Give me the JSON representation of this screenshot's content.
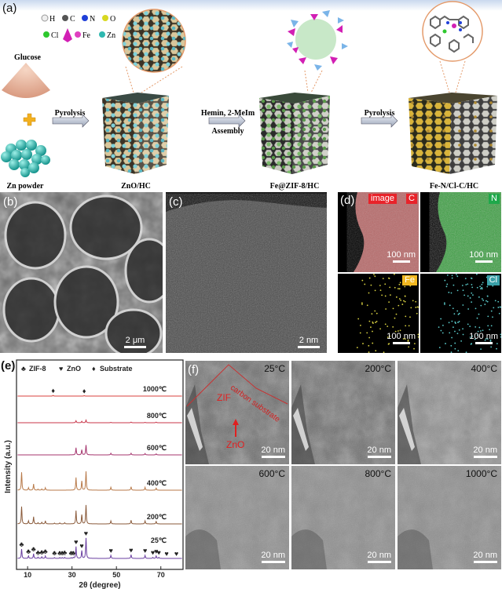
{
  "panel_a": {
    "label": "(a)",
    "legend": [
      {
        "symbol": "H",
        "color": "#eeeeee"
      },
      {
        "symbol": "C",
        "color": "#555555"
      },
      {
        "symbol": "N",
        "color": "#1f3fd8"
      },
      {
        "symbol": "O",
        "color": "#d8d820"
      },
      {
        "symbol": "Cl",
        "color": "#2ec82e"
      },
      {
        "symbol": "Fe",
        "color": "#d21fb4"
      },
      {
        "symbol": "Zn",
        "color": "#2fb8b0"
      }
    ],
    "glucose_label": "Glucose",
    "zn_powder_label": "Zn powder",
    "step1_label": "Pyrolysis",
    "step2_label_top": "Hemin, 2-MeIm",
    "step2_label_bottom": "Assembly",
    "step3_label": "Pyrolysis",
    "product1": "ZnO/HC",
    "product2": "Fe@ZIF-8/HC",
    "product3": "Fe-N/Cl-C/HC"
  },
  "panel_b": {
    "label": "(b)",
    "scale_bar": "2 μm"
  },
  "panel_c": {
    "label": "(c)",
    "scale_bar": "2 nm"
  },
  "panel_d": {
    "label": "(d)",
    "tiles": [
      {
        "tags": [
          "image",
          "C"
        ],
        "color": "#e8232a",
        "scale_bar": "100 nm"
      },
      {
        "tags": [
          "N"
        ],
        "color": "#1fa84a",
        "scale_bar": "100 nm"
      },
      {
        "tags": [
          "Fe"
        ],
        "color": "#f2b820",
        "scale_bar": "100 nm"
      },
      {
        "tags": [
          "Cl"
        ],
        "color": "#3aa0a8",
        "scale_bar": "100 nm"
      }
    ]
  },
  "panel_f": {
    "label": "(f)",
    "annotations": {
      "substrate": "carbon substrate",
      "zif": "ZIF",
      "zno": "ZnO"
    },
    "tiles": [
      {
        "temp": "25°C",
        "scale_bar": "20 nm"
      },
      {
        "temp": "200°C",
        "scale_bar": "20 nm"
      },
      {
        "temp": "400°C",
        "scale_bar": "20 nm"
      },
      {
        "temp": "600°C",
        "scale_bar": "20 nm"
      },
      {
        "temp": "800°C",
        "scale_bar": "20 nm"
      },
      {
        "temp": "1000°C",
        "scale_bar": "20 nm"
      }
    ]
  },
  "chart_data": {
    "panel_label": "(e)",
    "type": "line",
    "xlabel": "2θ (degree)",
    "ylabel": "Intensity (a.u.)",
    "xlim": [
      5,
      80
    ],
    "xticks": [
      10,
      30,
      50,
      70
    ],
    "legend": [
      {
        "symbol": "♣",
        "name": "ZIF-8"
      },
      {
        "symbol": "♥",
        "name": "ZnO"
      },
      {
        "symbol": "♦",
        "name": "Substrate"
      }
    ],
    "legend_placement": "top",
    "series": [
      {
        "name": "1000℃",
        "color": "#d9423c",
        "peaks": [
          [
            21.5,
            3
          ],
          [
            35.5,
            2
          ]
        ],
        "markers": [
          {
            "symbol": "♦",
            "x": [
              21.5,
              35.5
            ]
          }
        ]
      },
      {
        "name": "800℃",
        "color": "#c8364a",
        "peaks": [
          [
            31.8,
            10
          ],
          [
            34.4,
            7
          ],
          [
            36.3,
            13
          ],
          [
            47.5,
            2
          ],
          [
            56.6,
            3
          ],
          [
            62.9,
            2
          ],
          [
            67.9,
            3
          ]
        ]
      },
      {
        "name": "600℃",
        "color": "#a5356e",
        "peaks": [
          [
            31.8,
            35
          ],
          [
            34.4,
            25
          ],
          [
            36.3,
            48
          ],
          [
            47.5,
            8
          ],
          [
            56.6,
            8
          ],
          [
            62.9,
            7
          ],
          [
            67.9,
            5
          ]
        ]
      },
      {
        "name": "400℃",
        "color": "#b87a4a",
        "peaks": [
          [
            7.3,
            88
          ],
          [
            10.4,
            12
          ],
          [
            12.7,
            30
          ],
          [
            14.7,
            5
          ],
          [
            16.4,
            6
          ],
          [
            18.0,
            12
          ],
          [
            31.8,
            62
          ],
          [
            34.4,
            45
          ],
          [
            36.3,
            92
          ],
          [
            47.5,
            14
          ],
          [
            56.6,
            17
          ],
          [
            62.9,
            14
          ],
          [
            67.9,
            10
          ]
        ]
      },
      {
        "name": "200℃",
        "color": "#8a5a3a",
        "peaks": [
          [
            7.3,
            85
          ],
          [
            10.4,
            15
          ],
          [
            12.7,
            35
          ],
          [
            14.7,
            6
          ],
          [
            16.4,
            8
          ],
          [
            18.0,
            15
          ],
          [
            22.1,
            4
          ],
          [
            24.5,
            5
          ],
          [
            26.7,
            6
          ],
          [
            31.8,
            65
          ],
          [
            34.4,
            45
          ],
          [
            36.3,
            92
          ],
          [
            47.5,
            15
          ],
          [
            56.6,
            18
          ],
          [
            62.9,
            15
          ],
          [
            67.9,
            12
          ]
        ]
      },
      {
        "name": "25℃",
        "color": "#6a3fa0",
        "peaks": [
          [
            7.3,
            46
          ],
          [
            10.4,
            12
          ],
          [
            12.7,
            23
          ],
          [
            14.7,
            6
          ],
          [
            16.4,
            8
          ],
          [
            18.0,
            12
          ],
          [
            22.1,
            4
          ],
          [
            24.5,
            4
          ],
          [
            25.6,
            4
          ],
          [
            26.7,
            5
          ],
          [
            29.6,
            3
          ],
          [
            30.6,
            4
          ],
          [
            31.8,
            58
          ],
          [
            34.4,
            38
          ],
          [
            36.3,
            100
          ],
          [
            47.5,
            15
          ],
          [
            56.6,
            18
          ],
          [
            62.9,
            15
          ],
          [
            66.4,
            5
          ],
          [
            67.9,
            12
          ],
          [
            69.1,
            5
          ]
        ],
        "markers": [
          {
            "symbol": "♣",
            "x": [
              7.3,
              10.4,
              12.7,
              14.7,
              16.4,
              18.0,
              22.1,
              24.5,
              25.6,
              26.7,
              29.6,
              30.6
            ]
          },
          {
            "symbol": "♥",
            "x": [
              31.8,
              34.4,
              36.3,
              47.5,
              56.6,
              62.9,
              66.4,
              67.9,
              69.1,
              72.6,
              77.0
            ]
          }
        ]
      }
    ]
  }
}
